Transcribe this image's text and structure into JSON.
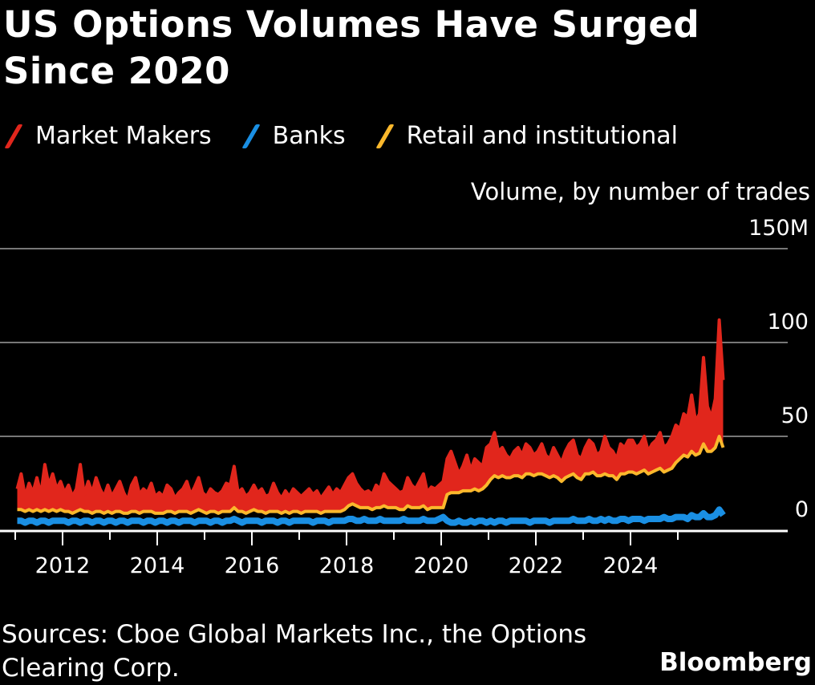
{
  "title": "US Options Volumes Have Surged Since 2020",
  "source": "Sources: Cboe Global Markets Inc., the Options Clearing Corp.",
  "brand": "Bloomberg",
  "chart_data": {
    "type": "line",
    "title": "US Options Volumes Have Surged Since 2020",
    "ylabel": "Volume, by number of trades",
    "ylim": [
      0,
      150
    ],
    "yticks": [
      {
        "value": 0,
        "label": "0"
      },
      {
        "value": 50,
        "label": "50"
      },
      {
        "value": 100,
        "label": "100"
      },
      {
        "value": 150,
        "label": "150M"
      }
    ],
    "xlim": [
      2011,
      2026
    ],
    "xticks": [
      "2012",
      "2014",
      "2016",
      "2018",
      "2020",
      "2022",
      "2024"
    ],
    "x_start": "2011-01",
    "x_frequency": "monthly",
    "grid": true,
    "legend_position": "top-left",
    "series": [
      {
        "name": "Market Makers",
        "color": "#e1261c",
        "values": [
          22,
          30,
          18,
          25,
          20,
          28,
          19,
          35,
          24,
          30,
          22,
          26,
          20,
          24,
          18,
          22,
          35,
          19,
          26,
          20,
          28,
          22,
          18,
          24,
          18,
          22,
          26,
          20,
          16,
          24,
          28,
          19,
          22,
          20,
          25,
          18,
          20,
          18,
          24,
          22,
          17,
          20,
          22,
          26,
          19,
          23,
          28,
          20,
          18,
          22,
          20,
          19,
          21,
          25,
          24,
          34,
          20,
          22,
          18,
          20,
          24,
          20,
          22,
          18,
          19,
          25,
          20,
          17,
          21,
          18,
          22,
          20,
          18,
          20,
          22,
          19,
          21,
          17,
          20,
          23,
          19,
          22,
          20,
          24,
          28,
          30,
          25,
          22,
          20,
          21,
          19,
          24,
          22,
          30,
          26,
          24,
          22,
          20,
          21,
          28,
          24,
          22,
          26,
          30,
          20,
          23,
          22,
          24,
          26,
          38,
          42,
          36,
          30,
          34,
          40,
          32,
          38,
          36,
          34,
          44,
          46,
          52,
          42,
          44,
          40,
          38,
          42,
          44,
          40,
          46,
          44,
          40,
          42,
          46,
          40,
          38,
          44,
          40,
          36,
          42,
          46,
          48,
          40,
          38,
          44,
          48,
          46,
          40,
          42,
          50,
          44,
          42,
          38,
          46,
          44,
          48,
          48,
          44,
          46,
          50,
          42,
          46,
          48,
          52,
          44,
          46,
          50,
          56,
          54,
          62,
          60,
          72,
          58,
          62,
          92,
          66,
          60,
          70,
          112,
          80
        ]
      },
      {
        "name": "Banks",
        "color": "#1a8fe3",
        "values": [
          5,
          5,
          4,
          5,
          5,
          4,
          5,
          5,
          4,
          5,
          5,
          5,
          5,
          4,
          5,
          5,
          4,
          5,
          5,
          4,
          5,
          5,
          4,
          5,
          5,
          4,
          5,
          5,
          4,
          5,
          5,
          5,
          4,
          5,
          5,
          4,
          5,
          5,
          4,
          5,
          5,
          4,
          5,
          5,
          5,
          4,
          5,
          5,
          5,
          4,
          5,
          5,
          4,
          5,
          5,
          6,
          5,
          4,
          5,
          5,
          5,
          5,
          4,
          5,
          5,
          5,
          4,
          5,
          5,
          4,
          5,
          5,
          5,
          5,
          5,
          4,
          5,
          5,
          5,
          4,
          5,
          5,
          5,
          5,
          6,
          6,
          5,
          5,
          6,
          5,
          5,
          5,
          6,
          5,
          5,
          5,
          5,
          5,
          6,
          5,
          5,
          5,
          5,
          6,
          5,
          5,
          5,
          6,
          7,
          5,
          4,
          4,
          5,
          4,
          4,
          5,
          4,
          5,
          5,
          4,
          5,
          4,
          5,
          5,
          4,
          5,
          5,
          5,
          5,
          5,
          4,
          5,
          5,
          5,
          5,
          4,
          5,
          5,
          5,
          5,
          5,
          6,
          5,
          5,
          5,
          6,
          5,
          5,
          6,
          5,
          6,
          5,
          5,
          6,
          6,
          5,
          6,
          6,
          6,
          5,
          6,
          6,
          6,
          6,
          7,
          6,
          6,
          7,
          7,
          7,
          6,
          8,
          7,
          7,
          9,
          7,
          7,
          8,
          11,
          8
        ]
      },
      {
        "name": "Retail and institutional",
        "color": "#fbb82c",
        "values": [
          11,
          11,
          10,
          11,
          10,
          11,
          10,
          11,
          10,
          11,
          10,
          11,
          10,
          10,
          9,
          10,
          11,
          10,
          10,
          9,
          10,
          10,
          9,
          10,
          9,
          10,
          10,
          9,
          9,
          10,
          10,
          9,
          10,
          10,
          10,
          9,
          9,
          9,
          10,
          10,
          9,
          10,
          10,
          10,
          9,
          10,
          11,
          10,
          9,
          10,
          10,
          9,
          10,
          10,
          10,
          12,
          10,
          10,
          9,
          10,
          11,
          10,
          10,
          9,
          10,
          10,
          10,
          9,
          10,
          9,
          10,
          10,
          9,
          10,
          10,
          10,
          10,
          9,
          10,
          10,
          10,
          10,
          10,
          11,
          13,
          14,
          13,
          12,
          12,
          12,
          11,
          12,
          12,
          13,
          12,
          12,
          12,
          11,
          11,
          13,
          12,
          12,
          12,
          13,
          11,
          12,
          12,
          12,
          12,
          19,
          20,
          20,
          20,
          21,
          21,
          21,
          22,
          21,
          22,
          24,
          27,
          29,
          28,
          29,
          28,
          28,
          29,
          29,
          28,
          30,
          30,
          29,
          30,
          30,
          29,
          28,
          29,
          28,
          26,
          28,
          29,
          30,
          28,
          27,
          30,
          30,
          31,
          29,
          29,
          30,
          29,
          29,
          27,
          30,
          30,
          31,
          31,
          30,
          31,
          32,
          30,
          31,
          32,
          33,
          31,
          32,
          33,
          36,
          38,
          40,
          39,
          42,
          40,
          41,
          46,
          42,
          42,
          44,
          50,
          44
        ]
      }
    ]
  }
}
